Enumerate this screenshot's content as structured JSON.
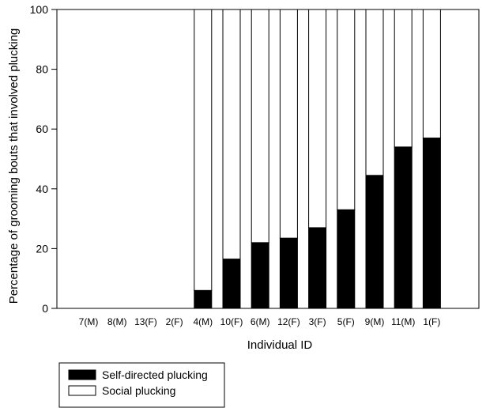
{
  "chart_data": {
    "type": "bar",
    "stacked": true,
    "title": "",
    "xlabel": "Individual ID",
    "ylabel": "Percentage of grooming bouts that involved plucking",
    "ylim": [
      0,
      100
    ],
    "yticks": [
      0,
      20,
      40,
      60,
      80,
      100
    ],
    "grid": false,
    "legend_position": "bottom-left",
    "categories": [
      "7(M)",
      "8(M)",
      "13(F)",
      "2(F)",
      "4(M)",
      "10(F)",
      "6(M)",
      "12(F)",
      "3(F)",
      "5(F)",
      "9(M)",
      "11(M)",
      "1(F)"
    ],
    "series": [
      {
        "name": "Self-directed plucking",
        "color": "#000000",
        "values": [
          0,
          0,
          0,
          0,
          6,
          16.5,
          22,
          23.5,
          27,
          33,
          44.5,
          54,
          57
        ]
      },
      {
        "name": "Social plucking",
        "color": "#ffffff",
        "values": [
          0,
          0,
          0,
          0,
          94,
          83.5,
          78,
          76.5,
          73,
          67,
          55.5,
          46,
          43
        ]
      }
    ]
  }
}
